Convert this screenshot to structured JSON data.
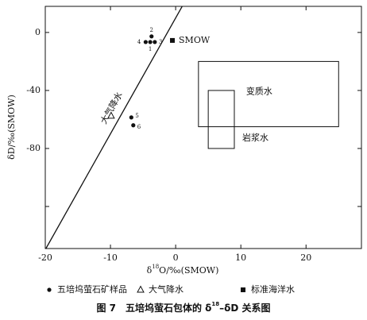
{
  "chart_data": {
    "type": "scatter",
    "xlabel": {
      "text": "δ",
      "sup": "18",
      "rest": "O/‰(SMOW)"
    },
    "ylabel": "δD/‰(SMOW)",
    "xlim": [
      -20,
      28.5
    ],
    "ylim": [
      -149,
      18
    ],
    "xticks": [
      -20,
      -10,
      0,
      10,
      20
    ],
    "yticks": [
      {
        "value": -120,
        "label": null
      },
      -80,
      -40,
      0
    ],
    "series": [
      {
        "name": "五培坞萤石矿样品",
        "marker": "dot",
        "color": "#111",
        "x": [
          -3.9,
          -3.7,
          -3.2,
          -4.6,
          -6.8,
          -6.5
        ],
        "y": [
          -6.6,
          -2.7,
          -6.6,
          -6.6,
          -58.6,
          -64
        ],
        "labels": [
          "1",
          "2",
          "3",
          "4",
          "5",
          "6"
        ]
      },
      {
        "name": "大气降水",
        "marker": "triangle",
        "color": "#111",
        "x": [
          -9.9
        ],
        "y": [
          -57.5
        ]
      },
      {
        "name": "标准海洋水",
        "marker": "square",
        "color": "#111",
        "x": [
          -0.5
        ],
        "y": [
          -5.5
        ],
        "labels": [
          "SMOW"
        ]
      }
    ],
    "lines": [
      {
        "label": "大气降水",
        "x": [
          -19.9,
          1
        ],
        "y": [
          -149,
          18
        ]
      }
    ],
    "regions": [
      {
        "label": "变质水",
        "xlim": [
          3.5,
          25
        ],
        "ylim": [
          -65,
          -20
        ]
      },
      {
        "label": "岩浆水",
        "xlim": [
          5,
          9
        ],
        "ylim": [
          -80,
          -40
        ]
      }
    ],
    "caption": {
      "prefix": "图 7　五培坞萤石包体的 δ",
      "sup": "18",
      "suffix": "–δD 关系图"
    }
  }
}
